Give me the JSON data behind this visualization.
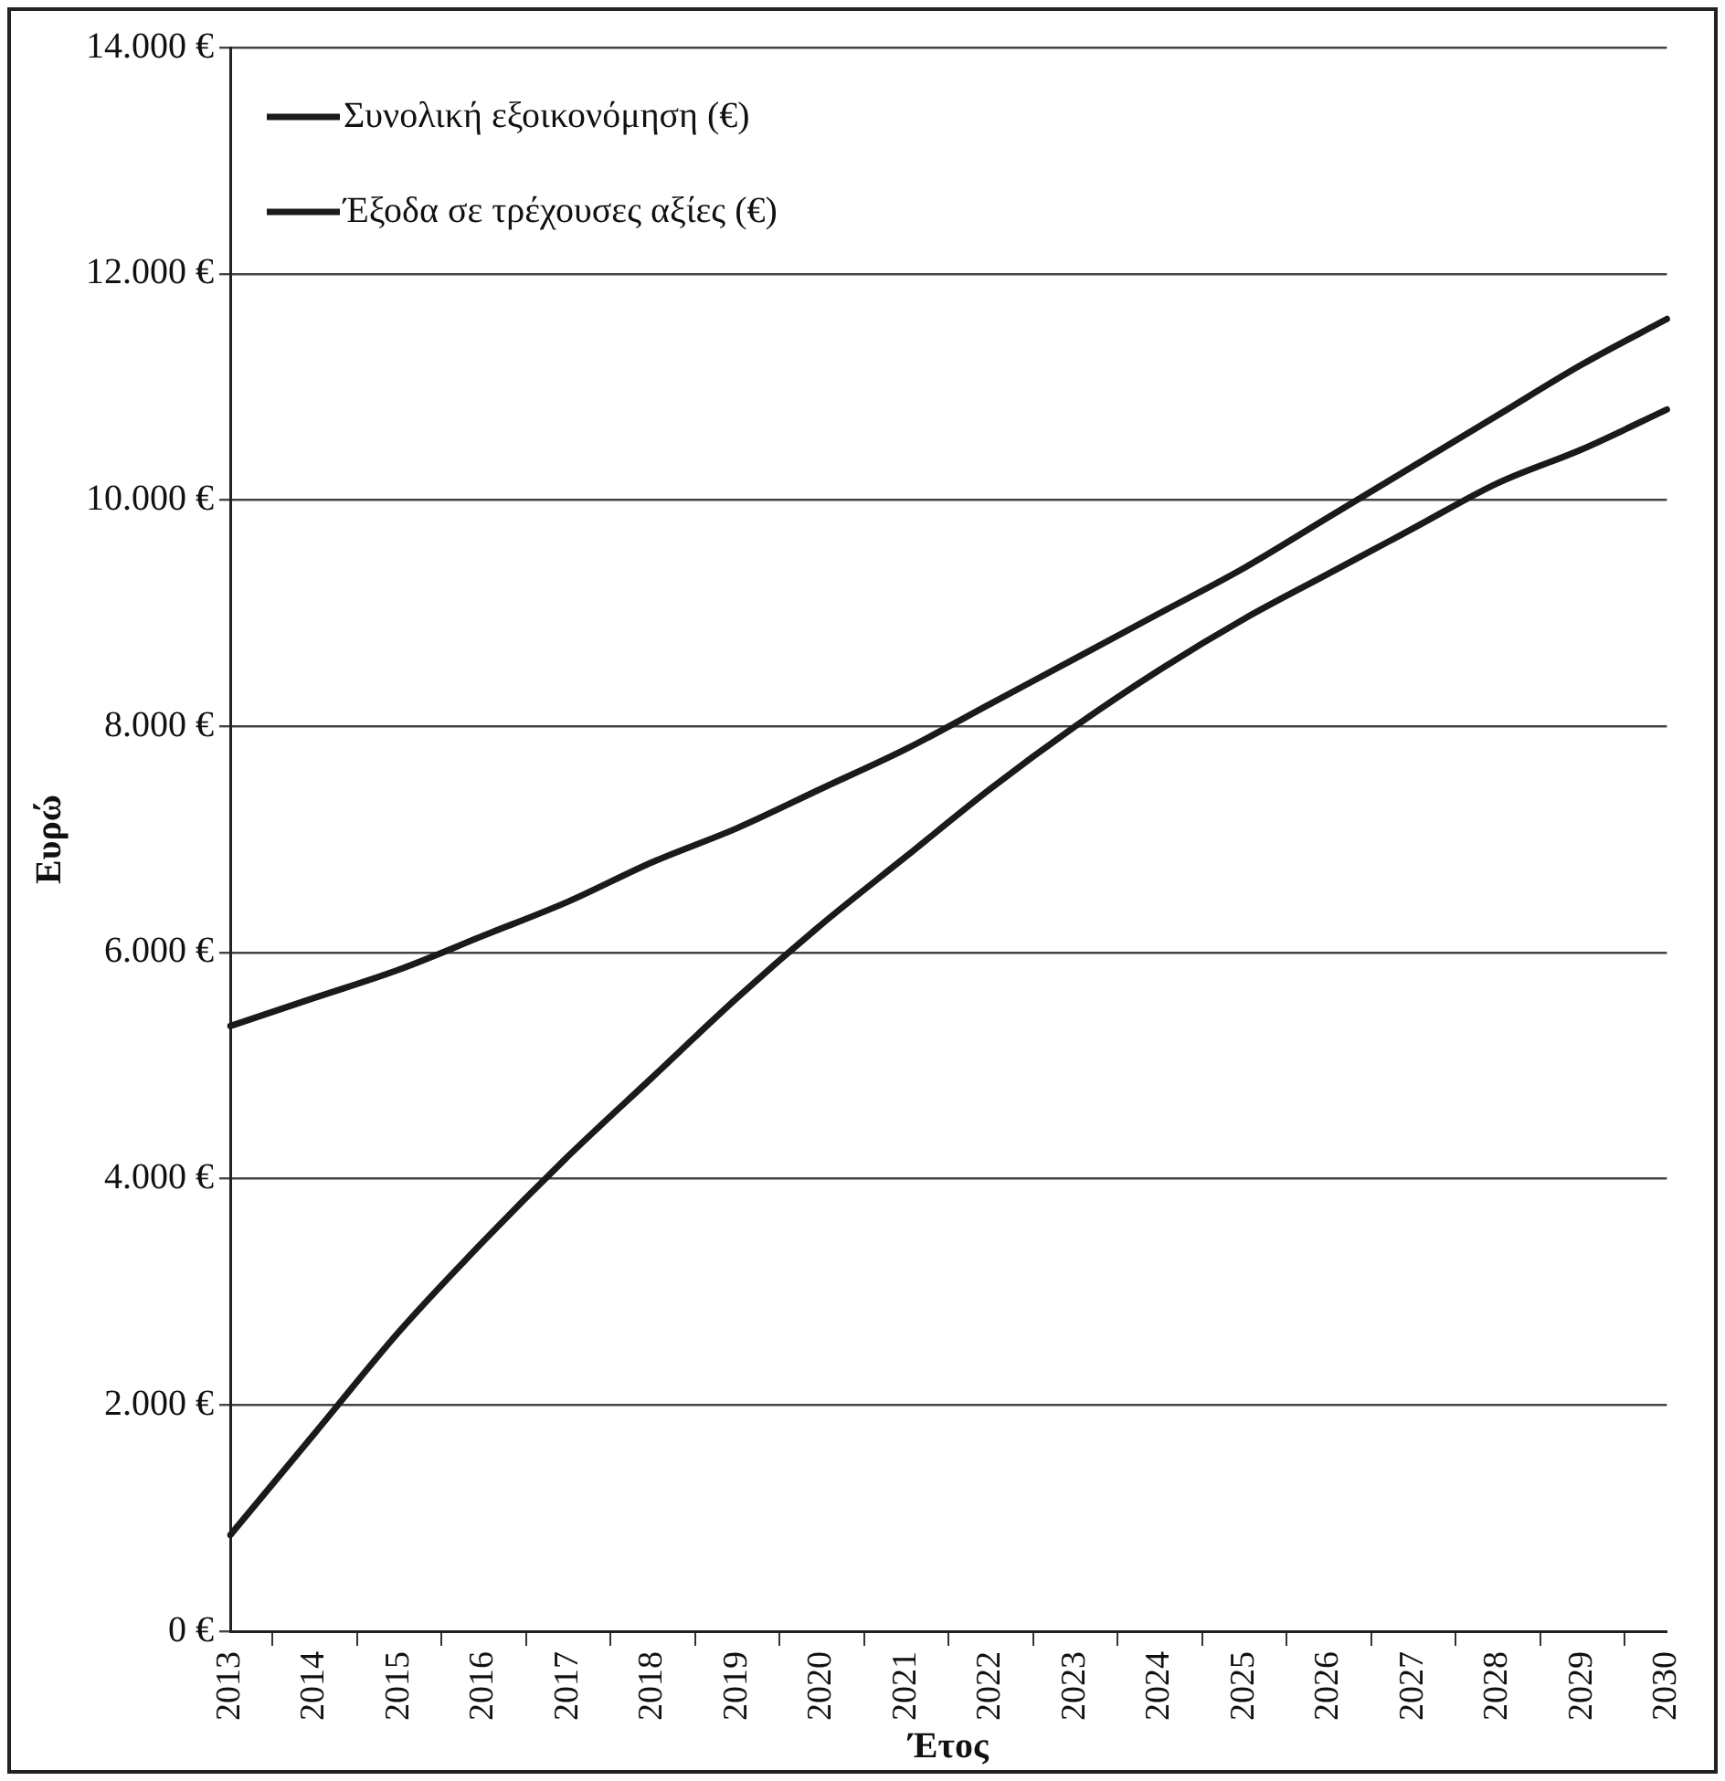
{
  "chart_data": {
    "type": "line",
    "xlabel": "Έτος",
    "ylabel": "Ευρώ",
    "categories": [
      "2013",
      "2014",
      "2015",
      "2016",
      "2017",
      "2018",
      "2019",
      "2020",
      "2021",
      "2022",
      "2023",
      "2024",
      "2025",
      "2026",
      "2027",
      "2028",
      "2029",
      "2030"
    ],
    "series": [
      {
        "name": "Συνολική εξοικονόμηση (€)",
        "color": "#1a1a1a",
        "values": [
          850,
          1750,
          2650,
          3450,
          4200,
          4900,
          5600,
          6250,
          6850,
          7450,
          8000,
          8500,
          8950,
          9350,
          9750,
          10150,
          10450,
          10800
        ]
      },
      {
        "name": "Έξοδα σε τρέχουσες αξίες (€)",
        "color": "#1a1a1a",
        "values": [
          5350,
          5600,
          5850,
          6150,
          6450,
          6800,
          7100,
          7450,
          7800,
          8200,
          8600,
          9000,
          9400,
          9850,
          10300,
          10750,
          11200,
          11600
        ]
      }
    ],
    "ylim": [
      0,
      14000
    ],
    "yticks": [
      {
        "value": 0,
        "label": "0 €"
      },
      {
        "value": 2000,
        "label": "2.000 €"
      },
      {
        "value": 4000,
        "label": "4.000 €"
      },
      {
        "value": 6000,
        "label": "6.000 €"
      },
      {
        "value": 8000,
        "label": "8.000 €"
      },
      {
        "value": 10000,
        "label": "10.000 €"
      },
      {
        "value": 12000,
        "label": "12.000 €"
      },
      {
        "value": 14000,
        "label": "14.000 €"
      }
    ],
    "grid": "y",
    "legend": "top left",
    "marker": "none",
    "line_style": "solid"
  }
}
